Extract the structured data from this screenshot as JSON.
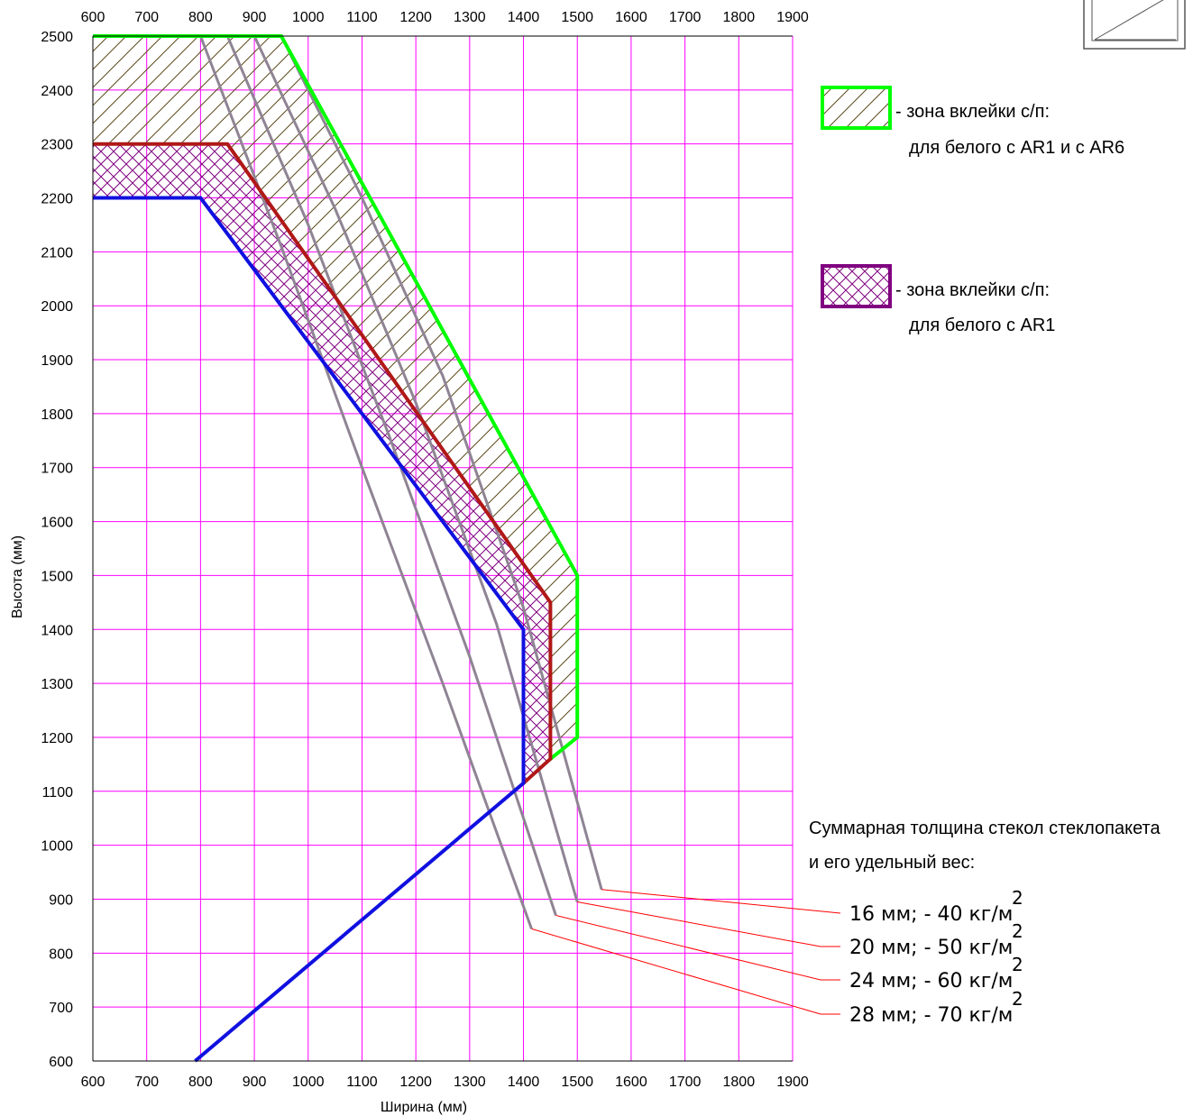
{
  "chart_data": {
    "type": "line",
    "xlabel": "Ширина (мм)",
    "ylabel": "Высота (мм)",
    "xlim": [
      600,
      1900
    ],
    "ylim": [
      600,
      2500
    ],
    "x_ticks": [
      600,
      700,
      800,
      900,
      1000,
      1100,
      1200,
      1300,
      1400,
      1500,
      1600,
      1700,
      1800,
      1900
    ],
    "y_ticks": [
      600,
      700,
      800,
      900,
      1000,
      1100,
      1200,
      1300,
      1400,
      1500,
      1600,
      1700,
      1800,
      1900,
      2000,
      2100,
      2200,
      2300,
      2400,
      2500
    ],
    "x_ticks_top": true,
    "grid": true,
    "grid_color": "#ff00ff",
    "zones": [
      {
        "key": "ar1_ar6",
        "color": "#00ff00",
        "hatch": "diagonal",
        "hatch_color": "#5a4a1a",
        "legend_line1": "- зона вклейки с/п:",
        "legend_line2": "для белого с AR1 и с AR6",
        "outline": [
          [
            600,
            2500
          ],
          [
            950,
            2500
          ],
          [
            1500,
            1500
          ],
          [
            1500,
            1200
          ],
          [
            1450,
            1160
          ]
        ]
      },
      {
        "key": "ar1",
        "color": "#b01818",
        "fill_color": "#800080",
        "hatch": "crosshatch",
        "hatch_color": "#800080",
        "legend_line1": "- зона вклейки с/п:",
        "legend_line2": "для белого с AR1",
        "outline": [
          [
            600,
            2300
          ],
          [
            850,
            2300
          ],
          [
            1450,
            1450
          ],
          [
            1450,
            1160
          ],
          [
            1400,
            1115
          ]
        ]
      }
    ],
    "lower_boundary": {
      "color": "#1010e0",
      "points": [
        [
          600,
          2200
        ],
        [
          800,
          2200
        ],
        [
          1400,
          1400
        ],
        [
          1400,
          1115
        ],
        [
          790,
          600
        ]
      ]
    },
    "weight_curves_title_line1": "Суммарная толщина стекол стеклопакета",
    "weight_curves_title_line2": "и его удельный вес:",
    "weight_curves_color": "#8f8494",
    "leader_color": "#ff0000",
    "series": [
      {
        "name": "16 мм;  - 40 кг/м",
        "sup": "2",
        "points": [
          [
            950,
            2500
          ],
          [
            1100,
            2200
          ],
          [
            1250,
            1870
          ],
          [
            1400,
            1440
          ],
          [
            1545,
            918
          ]
        ],
        "end_y": 918
      },
      {
        "name": "20 мм;  - 50 кг/м",
        "sup": "2",
        "points": [
          [
            900,
            2500
          ],
          [
            1050,
            2180
          ],
          [
            1200,
            1820
          ],
          [
            1350,
            1410
          ],
          [
            1500,
            895
          ]
        ],
        "end_y": 895
      },
      {
        "name": "24 мм;  - 60 кг/м",
        "sup": "2",
        "points": [
          [
            850,
            2500
          ],
          [
            1000,
            2150
          ],
          [
            1150,
            1760
          ],
          [
            1300,
            1350
          ],
          [
            1460,
            870
          ]
        ],
        "end_y": 870
      },
      {
        "name": "28 мм;  - 70 кг/м",
        "sup": "2",
        "points": [
          [
            800,
            2500
          ],
          [
            950,
            2110
          ],
          [
            1100,
            1700
          ],
          [
            1250,
            1300
          ],
          [
            1415,
            845
          ]
        ],
        "end_y": 845
      }
    ]
  }
}
